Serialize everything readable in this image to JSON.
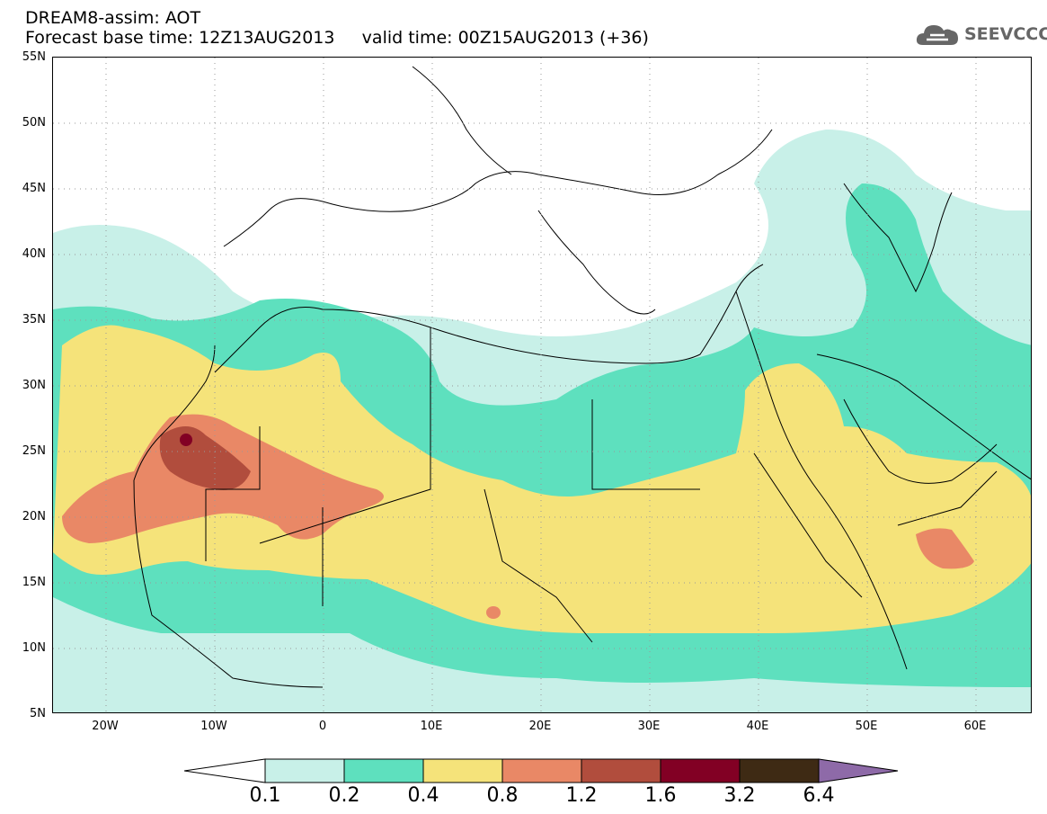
{
  "title": {
    "line1": "DREAM8-assim: AOT",
    "line2": "Forecast base time: 12Z13AUG2013     valid time: 00Z15AUG2013 (+36)"
  },
  "logo": {
    "text": "SEEVCCC",
    "icon": "cloud-logo-icon"
  },
  "map": {
    "lat_ticks": [
      "55N",
      "50N",
      "45N",
      "40N",
      "35N",
      "30N",
      "25N",
      "20N",
      "15N",
      "10N",
      "5N"
    ],
    "lon_ticks": [
      "20W",
      "10W",
      "0",
      "10E",
      "20E",
      "30E",
      "40E",
      "50E",
      "60E"
    ],
    "gridlines": true,
    "gridline_style": "dotted"
  },
  "colorbar": {
    "labels": [
      "0.1",
      "0.2",
      "0.4",
      "0.8",
      "1.2",
      "1.6",
      "3.2",
      "6.4"
    ],
    "colors": {
      "below": "#ffffff",
      "c1": "#c8f0e8",
      "c2": "#5ee0be",
      "c3": "#f5e37a",
      "c4": "#e98866",
      "c5": "#b14d3d",
      "c6": "#820024",
      "c7": "#3e2a14",
      "above": "#8e6aa8"
    }
  }
}
